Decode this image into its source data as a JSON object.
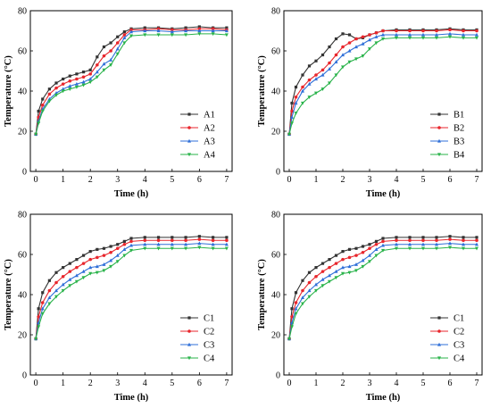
{
  "chart_data": [
    {
      "type": "line",
      "panel": "top-left",
      "xlabel": "Time (h)",
      "ylabel": "Temperature (°C)",
      "xlim": [
        -0.2,
        7.2
      ],
      "ylim": [
        0,
        80
      ],
      "xticks": [
        0,
        1,
        2,
        3,
        4,
        5,
        6,
        7
      ],
      "yticks": [
        0,
        20,
        40,
        60,
        80
      ],
      "legend": "bottom-right",
      "x": [
        0,
        0.1,
        0.25,
        0.5,
        0.75,
        1,
        1.25,
        1.5,
        1.75,
        2,
        2.25,
        2.5,
        2.75,
        3,
        3.25,
        3.5,
        4,
        4.5,
        5,
        5.5,
        6,
        6.5,
        7
      ],
      "series": [
        {
          "name": "A1",
          "color": "#333333",
          "marker": "square",
          "values": [
            18.5,
            30,
            36,
            41,
            44,
            46,
            47.5,
            48.5,
            49.5,
            50.5,
            57,
            62,
            64,
            67,
            69.5,
            71,
            71.5,
            71.5,
            71,
            71.5,
            72,
            71.5,
            71.5
          ]
        },
        {
          "name": "A2",
          "color": "#e8262c",
          "marker": "circle",
          "values": [
            18.5,
            27,
            33,
            38.5,
            41.5,
            43.5,
            45,
            46,
            47,
            48.5,
            53,
            57.5,
            60,
            64,
            68,
            70.5,
            70.5,
            71,
            70.5,
            70.5,
            71,
            71,
            70.5
          ]
        },
        {
          "name": "A3",
          "color": "#2f6fd8",
          "marker": "triangle-up",
          "values": [
            18.5,
            25,
            31,
            36,
            39,
            41,
            42.5,
            43.5,
            44.5,
            46,
            49.5,
            53.5,
            55.5,
            61,
            66.5,
            69.5,
            70,
            70,
            69.5,
            70,
            70,
            70,
            70
          ]
        },
        {
          "name": "A4",
          "color": "#29b34a",
          "marker": "triangle-down",
          "values": [
            18.5,
            24,
            30,
            35,
            38,
            40,
            41,
            42,
            43,
            44.5,
            47,
            50.5,
            53,
            58.5,
            64,
            67.5,
            68,
            68,
            68,
            68,
            68.5,
            68.5,
            68
          ]
        }
      ]
    },
    {
      "type": "line",
      "panel": "top-right",
      "xlabel": "Time (h)",
      "ylabel": "Temperature (°C)",
      "xlim": [
        -0.2,
        7.2
      ],
      "ylim": [
        0,
        80
      ],
      "xticks": [
        0,
        1,
        2,
        3,
        4,
        5,
        6,
        7
      ],
      "yticks": [
        0,
        20,
        40,
        60,
        80
      ],
      "legend": "bottom-right",
      "x": [
        0,
        0.1,
        0.25,
        0.5,
        0.75,
        1,
        1.25,
        1.5,
        1.75,
        2,
        2.25,
        2.5,
        2.75,
        3,
        3.25,
        3.5,
        4,
        4.5,
        5,
        5.5,
        6,
        6.5,
        7
      ],
      "series": [
        {
          "name": "B1",
          "color": "#333333",
          "marker": "square",
          "values": [
            18.5,
            34,
            42,
            48,
            52.5,
            55,
            58,
            62,
            66,
            68.5,
            68,
            66,
            66.5,
            68,
            69,
            70,
            70.5,
            70.5,
            70.5,
            70.5,
            71,
            70.5,
            70.5
          ]
        },
        {
          "name": "B2",
          "color": "#e8262c",
          "marker": "circle",
          "values": [
            18.5,
            30,
            37,
            42,
            45.5,
            48,
            50.5,
            54,
            58,
            62,
            64,
            66,
            67,
            68,
            69,
            70,
            70,
            70,
            70,
            70,
            70.5,
            70,
            70
          ]
        },
        {
          "name": "B3",
          "color": "#2f6fd8",
          "marker": "triangle-up",
          "values": [
            18.5,
            27,
            34,
            40,
            43.5,
            46,
            48,
            51,
            54.5,
            58,
            60,
            62,
            63.5,
            65.5,
            67,
            68,
            68,
            68,
            68,
            68,
            68.5,
            68,
            68
          ]
        },
        {
          "name": "B4",
          "color": "#29b34a",
          "marker": "triangle-down",
          "values": [
            18.5,
            24,
            29,
            34,
            37,
            39,
            41,
            44,
            48,
            52,
            54.5,
            56,
            57.5,
            61,
            64,
            66,
            66.5,
            66.5,
            66.5,
            66.5,
            67,
            66.5,
            66.5
          ]
        }
      ]
    },
    {
      "type": "line",
      "panel": "bottom-left",
      "xlabel": "Time (h)",
      "ylabel": "Temperature (°C)",
      "xlim": [
        -0.2,
        7.2
      ],
      "ylim": [
        0,
        80
      ],
      "xticks": [
        0,
        1,
        2,
        3,
        4,
        5,
        6,
        7
      ],
      "yticks": [
        0,
        20,
        40,
        60,
        80
      ],
      "legend": "bottom-right",
      "x": [
        0,
        0.1,
        0.25,
        0.5,
        0.75,
        1,
        1.25,
        1.5,
        1.75,
        2,
        2.25,
        2.5,
        2.75,
        3,
        3.25,
        3.5,
        4,
        4.5,
        5,
        5.5,
        6,
        6.5,
        7
      ],
      "series": [
        {
          "name": "C1",
          "color": "#333333",
          "marker": "square",
          "values": [
            18,
            33,
            41,
            47,
            51,
            53.5,
            55.5,
            57.5,
            59.5,
            61.5,
            62.5,
            63,
            64,
            65,
            66.5,
            68,
            68.5,
            68.5,
            68.5,
            68.5,
            69,
            68.5,
            68.5
          ]
        },
        {
          "name": "C2",
          "color": "#e8262c",
          "marker": "circle",
          "values": [
            18,
            29,
            36,
            42,
            46,
            49,
            51.5,
            53.5,
            55.5,
            57.5,
            58.5,
            59.5,
            61,
            63,
            65,
            66.5,
            67,
            67,
            67,
            67,
            67.5,
            67,
            67
          ]
        },
        {
          "name": "C3",
          "color": "#2f6fd8",
          "marker": "triangle-up",
          "values": [
            18,
            26,
            33,
            38.5,
            42,
            45,
            47.5,
            49.5,
            51.5,
            53.5,
            54,
            55,
            57,
            59.5,
            62.5,
            64.5,
            65,
            65,
            65,
            65,
            65.5,
            65,
            65
          ]
        },
        {
          "name": "C4",
          "color": "#29b34a",
          "marker": "triangle-down",
          "values": [
            18,
            24,
            30.5,
            35.5,
            39,
            42,
            44.5,
            46.5,
            48.5,
            50.5,
            51,
            52,
            54,
            56.5,
            59.5,
            62,
            63,
            63,
            63,
            63,
            63.5,
            63,
            63
          ]
        }
      ]
    },
    {
      "type": "line",
      "panel": "bottom-right",
      "xlabel": "Time (h)",
      "ylabel": "Temperature (°C)",
      "xlim": [
        -0.2,
        7.2
      ],
      "ylim": [
        0,
        80
      ],
      "xticks": [
        0,
        1,
        2,
        3,
        4,
        5,
        6,
        7
      ],
      "yticks": [
        0,
        20,
        40,
        60,
        80
      ],
      "legend": "bottom-right",
      "x": [
        0,
        0.1,
        0.25,
        0.5,
        0.75,
        1,
        1.25,
        1.5,
        1.75,
        2,
        2.25,
        2.5,
        2.75,
        3,
        3.25,
        3.5,
        4,
        4.5,
        5,
        5.5,
        6,
        6.5,
        7
      ],
      "series": [
        {
          "name": "C1",
          "color": "#333333",
          "marker": "square",
          "values": [
            18,
            33,
            41,
            47,
            51,
            53.5,
            55.5,
            57.5,
            59.5,
            61.5,
            62.5,
            63,
            64,
            65,
            66.5,
            68,
            68.5,
            68.5,
            68.5,
            68.5,
            69,
            68.5,
            68.5
          ]
        },
        {
          "name": "C2",
          "color": "#e8262c",
          "marker": "circle",
          "values": [
            18,
            29,
            36,
            42,
            46,
            49,
            51.5,
            53.5,
            55.5,
            57.5,
            58.5,
            59.5,
            61,
            63,
            65,
            66.5,
            67,
            67,
            67,
            67,
            67.5,
            67,
            67
          ]
        },
        {
          "name": "C3",
          "color": "#2f6fd8",
          "marker": "triangle-up",
          "values": [
            18,
            26,
            33,
            38.5,
            42,
            45,
            47.5,
            49.5,
            51.5,
            53.5,
            54,
            55,
            57,
            59.5,
            62.5,
            64.5,
            65,
            65,
            65,
            65,
            65.5,
            65,
            65
          ]
        },
        {
          "name": "C4",
          "color": "#29b34a",
          "marker": "triangle-down",
          "values": [
            18,
            24,
            30.5,
            35.5,
            39,
            42,
            44.5,
            46.5,
            48.5,
            50.5,
            51,
            52,
            54,
            56.5,
            59.5,
            62,
            63,
            63,
            63,
            63,
            63.5,
            63,
            63
          ]
        }
      ]
    }
  ]
}
